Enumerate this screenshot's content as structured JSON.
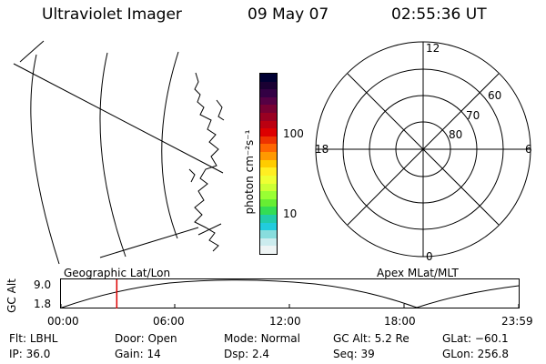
{
  "header": {
    "instrument": "Ultraviolet Imager",
    "date": "09 May 07",
    "time": "02:55:36 UT"
  },
  "colorbar": {
    "unit_label": "photon cm⁻²s⁻¹",
    "tick_labels": [
      "100",
      "10"
    ],
    "scale": "log",
    "colors": [
      "#000033",
      "#1a0033",
      "#330044",
      "#550044",
      "#770033",
      "#990022",
      "#bb0011",
      "#dd0000",
      "#ee3300",
      "#ff6600",
      "#ff9900",
      "#ffcc00",
      "#ffee22",
      "#eeff33",
      "#ccff33",
      "#99ff33",
      "#66ee33",
      "#33dd55",
      "#22ccaa",
      "#22ccdd",
      "#88dddd",
      "#ccecee",
      "#eef4f4"
    ]
  },
  "left_map": {
    "label": "Geographic Lat/Lon"
  },
  "polar_plot": {
    "label": "Apex MLat/MLT",
    "mlt_labels": {
      "top": "12",
      "left": "18",
      "right": "6",
      "bottom": "0"
    },
    "lat_labels": [
      "60",
      "70",
      "80"
    ]
  },
  "altitude_plot": {
    "ylabel": "GC Alt",
    "y_ticks": [
      "9.0",
      "1.8"
    ],
    "x_ticks": [
      "00:00",
      "06:00",
      "12:00",
      "18:00",
      "23:59"
    ],
    "current_time_marker": "02:55:36"
  },
  "footer": {
    "row1": [
      {
        "label": "Flt:",
        "value": "LBHL"
      },
      {
        "label": "Door:",
        "value": "Open"
      },
      {
        "label": "Mode:",
        "value": "Normal"
      },
      {
        "label": "GC Alt:",
        "value": "5.2 Re"
      },
      {
        "label": "GLat:",
        "value": "−60.1"
      }
    ],
    "row2": [
      {
        "label": "IP:",
        "value": "36.0"
      },
      {
        "label": "Gain:",
        "value": "14"
      },
      {
        "label": "Dsp:",
        "value": "2.4"
      },
      {
        "label": "Seq:",
        "value": "39"
      },
      {
        "label": "GLon:",
        "value": "256.8"
      }
    ]
  }
}
